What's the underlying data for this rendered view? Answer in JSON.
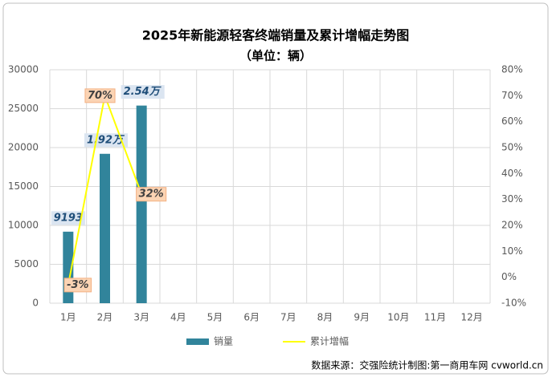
{
  "chart_data": {
    "type": "bar",
    "title": "2025年新能源轻客终端销量及累计增幅走势图",
    "subtitle": "（单位：辆）",
    "source": "数据来源：交强险统计制图:第一商用车网 cvworld.cn",
    "categories": [
      "1月",
      "2月",
      "3月",
      "4月",
      "5月",
      "6月",
      "7月",
      "8月",
      "9月",
      "10月",
      "11月",
      "12月"
    ],
    "series": [
      {
        "name": "销量",
        "type": "bar",
        "color": "#31849b",
        "values": [
          9193,
          19200,
          25400,
          null,
          null,
          null,
          null,
          null,
          null,
          null,
          null,
          null
        ],
        "value_labels": [
          "9193",
          "1.92万",
          "2.54万",
          null,
          null,
          null,
          null,
          null,
          null,
          null,
          null,
          null
        ]
      },
      {
        "name": "累计增幅",
        "type": "line",
        "axis": "y2",
        "color": "#ffff00",
        "values": [
          -3,
          70,
          32,
          null,
          null,
          null,
          null,
          null,
          null,
          null,
          null,
          null
        ],
        "value_labels": [
          "-3%",
          "70%",
          "32%",
          null,
          null,
          null,
          null,
          null,
          null,
          null,
          null,
          null
        ]
      }
    ],
    "ylim": [
      0,
      30000
    ],
    "yticks": [
      0,
      5000,
      10000,
      15000,
      20000,
      25000,
      30000
    ],
    "y2lim": [
      -10,
      80
    ],
    "y2ticks": [
      {
        "value": -10,
        "label": "-10%"
      },
      {
        "value": 0,
        "label": "0%"
      },
      {
        "value": 10,
        "label": "10%"
      },
      {
        "value": 20,
        "label": "20%"
      },
      {
        "value": 30,
        "label": "30%"
      },
      {
        "value": 40,
        "label": "40%"
      },
      {
        "value": 50,
        "label": "50%"
      },
      {
        "value": 60,
        "label": "60%"
      },
      {
        "value": 70,
        "label": "70%"
      },
      {
        "value": 80,
        "label": "80%"
      }
    ],
    "grid": true,
    "legend": "bottom"
  }
}
